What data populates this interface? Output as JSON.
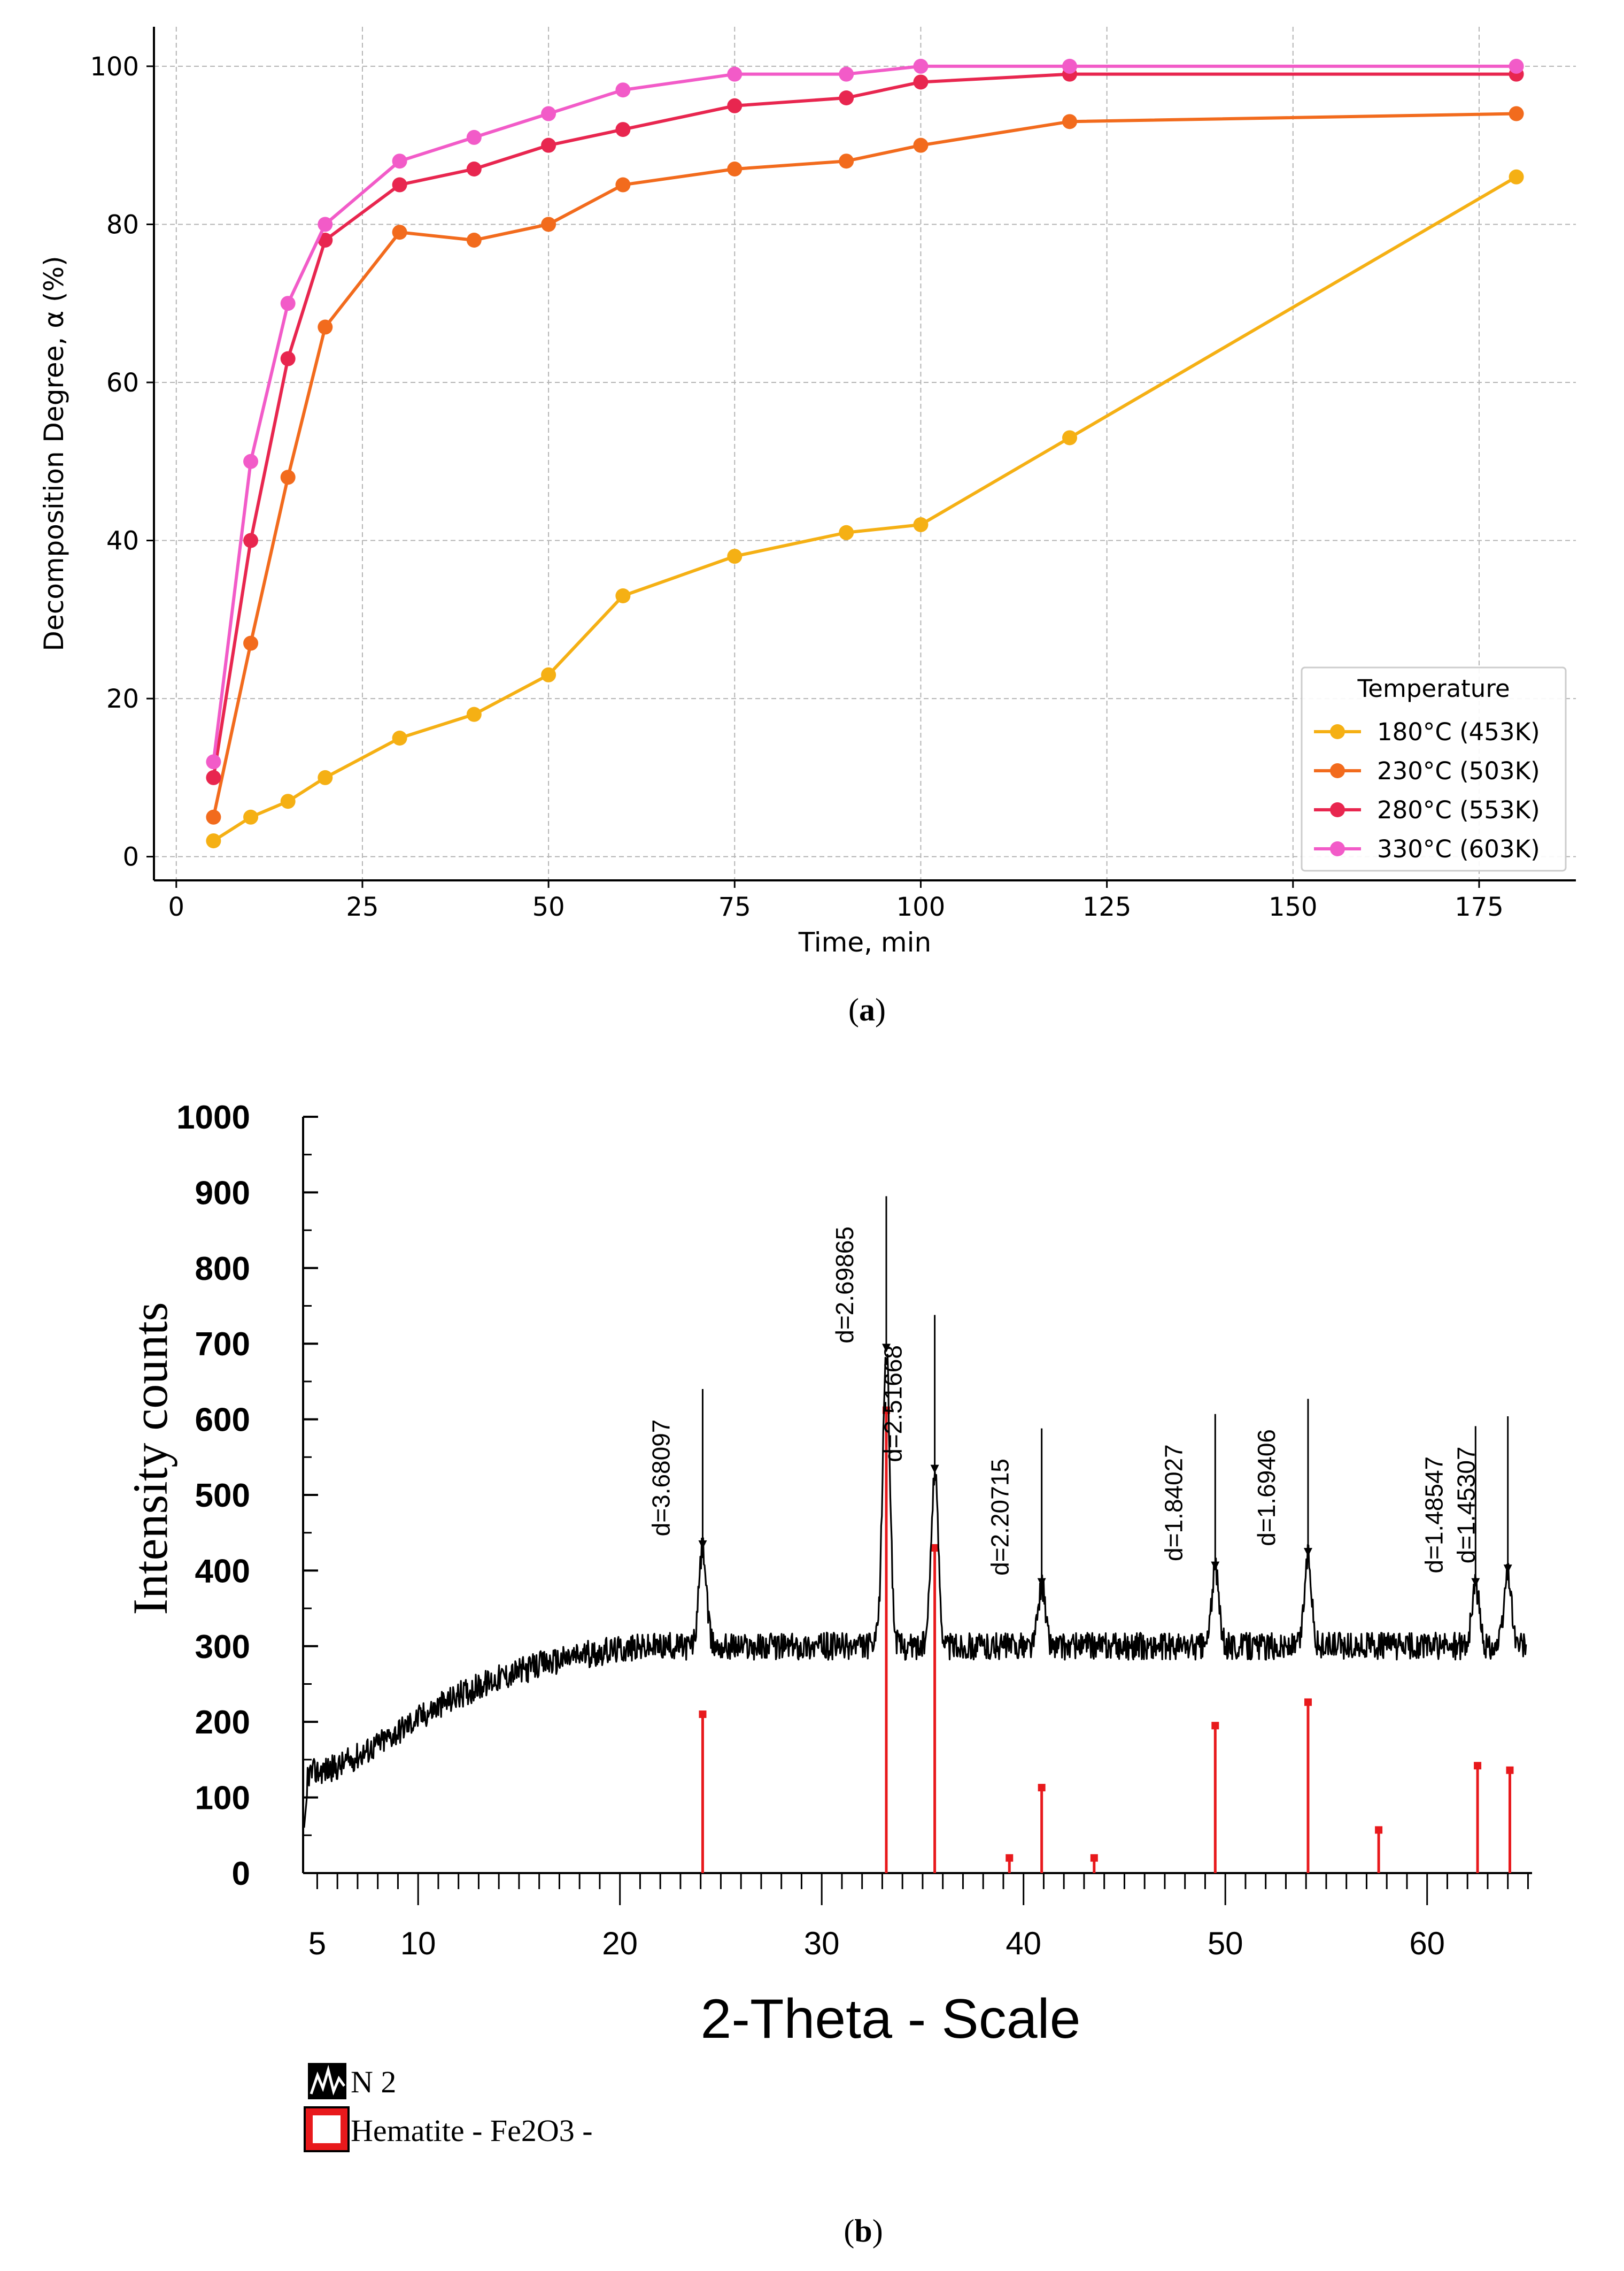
{
  "chart_data": [
    {
      "type": "line",
      "panel_label": "a",
      "xlabel": "Time, min",
      "ylabel": "Decomposition Degree, α (%)",
      "xlim": [
        -3,
        188
      ],
      "ylim": [
        -3,
        105
      ],
      "xticks": [
        0,
        25,
        50,
        75,
        100,
        125,
        150,
        175
      ],
      "yticks": [
        0,
        20,
        40,
        60,
        80,
        100
      ],
      "grid": true,
      "legend_title": "Temperature",
      "legend_position": "bottom-right",
      "x": [
        5,
        10,
        15,
        20,
        30,
        40,
        50,
        60,
        75,
        90,
        100,
        120,
        180
      ],
      "series": [
        {
          "name": "180°C (453K)",
          "color": "#f5b014",
          "values": [
            2,
            5,
            7,
            10,
            15,
            18,
            23,
            33,
            38,
            41,
            42,
            53,
            86
          ]
        },
        {
          "name": "230°C (503K)",
          "color": "#f26b1d",
          "values": [
            5,
            27,
            48,
            67,
            79,
            78,
            80,
            85,
            87,
            88,
            90,
            93,
            94
          ]
        },
        {
          "name": "280°C (553K)",
          "color": "#e8264f",
          "values": [
            10,
            40,
            63,
            78,
            85,
            87,
            90,
            92,
            95,
            96,
            98,
            99,
            99
          ]
        },
        {
          "name": "330°C (603K)",
          "color": "#f25bc8",
          "values": [
            12,
            50,
            70,
            80,
            88,
            91,
            94,
            97,
            99,
            99,
            100,
            100,
            100
          ]
        }
      ]
    },
    {
      "type": "line",
      "panel_label": "b",
      "xlabel": "2-Theta - Scale",
      "ylabel": "Intensity counts",
      "xlim": [
        4.3,
        65.2
      ],
      "ylim": [
        0,
        1000
      ],
      "xticks": [
        5,
        10,
        20,
        30,
        40,
        50,
        60
      ],
      "yticks": [
        0,
        100,
        200,
        300,
        400,
        500,
        600,
        700,
        800,
        900,
        1000
      ],
      "pattern_name": "N 2",
      "pattern_color": "#000000",
      "reference_name": "Hematite - Fe2O3 -",
      "reference_color": "#e8191c",
      "baseline": [
        [
          4.3,
          130
        ],
        [
          6,
          140
        ],
        [
          8,
          170
        ],
        [
          10,
          205
        ],
        [
          12,
          235
        ],
        [
          14,
          258
        ],
        [
          16,
          275
        ],
        [
          18,
          288
        ],
        [
          20,
          296
        ],
        [
          22,
          300
        ],
        [
          65,
          300
        ]
      ],
      "peaks": [
        {
          "x": 24.1,
          "top": 640,
          "marker": 430,
          "label": "d=3.68097"
        },
        {
          "x": 33.2,
          "top": 895,
          "marker": 690,
          "label": "d=2.69865"
        },
        {
          "x": 35.6,
          "top": 738,
          "marker": 530,
          "label": "d=2.51668"
        },
        {
          "x": 40.9,
          "top": 588,
          "marker": 380,
          "label": "d=2.20715"
        },
        {
          "x": 49.5,
          "top": 607,
          "marker": 402,
          "label": "d=1.84027"
        },
        {
          "x": 54.1,
          "top": 627,
          "marker": 420,
          "label": "d=1.69406"
        },
        {
          "x": 62.4,
          "top": 591,
          "marker": 380,
          "label": "d=1.48547"
        },
        {
          "x": 64.0,
          "top": 604,
          "marker": 398,
          "label": "d=1.45307"
        }
      ],
      "reference_lines": [
        {
          "x": 24.1,
          "value": 210
        },
        {
          "x": 33.2,
          "value": 612
        },
        {
          "x": 35.6,
          "value": 430
        },
        {
          "x": 39.3,
          "value": 20
        },
        {
          "x": 40.9,
          "value": 113
        },
        {
          "x": 43.5,
          "value": 20
        },
        {
          "x": 49.5,
          "value": 195
        },
        {
          "x": 54.1,
          "value": 226
        },
        {
          "x": 57.6,
          "value": 57
        },
        {
          "x": 62.5,
          "value": 142
        },
        {
          "x": 64.1,
          "value": 136
        }
      ]
    }
  ]
}
